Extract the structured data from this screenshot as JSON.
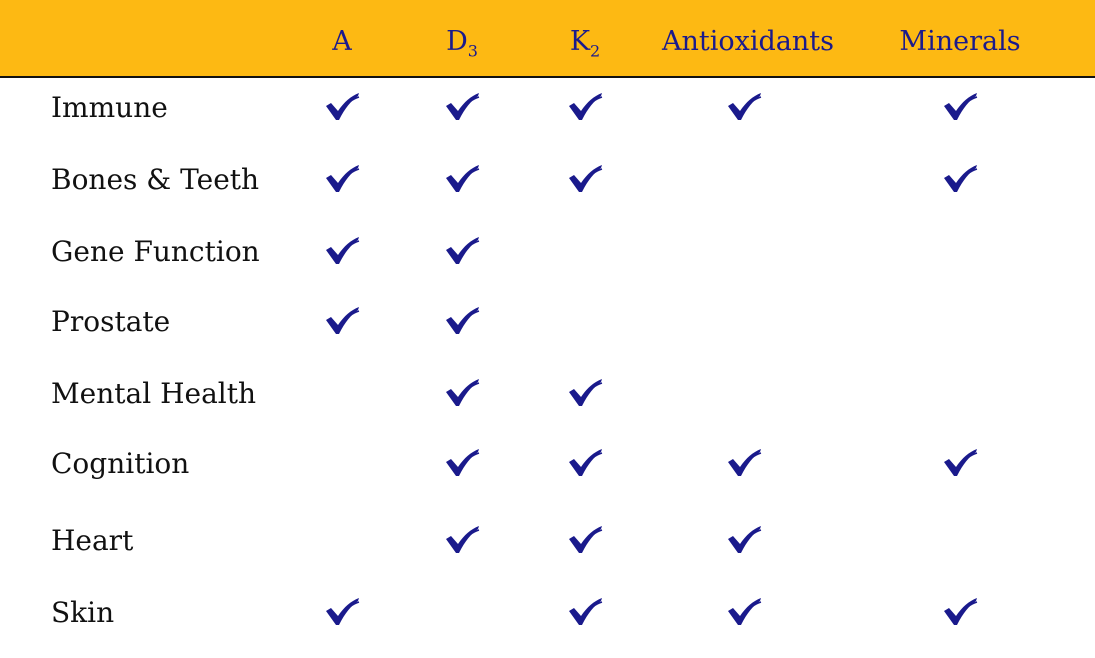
{
  "colors": {
    "header_bg": "#FDB913",
    "header_text": "#1a1a8c",
    "check": "#1a1a8c"
  },
  "columns": [
    {
      "label": "A",
      "sub": ""
    },
    {
      "label": "D",
      "sub": "3"
    },
    {
      "label": "K",
      "sub": "2"
    },
    {
      "label": "Antioxidants",
      "sub": ""
    },
    {
      "label": "Minerals",
      "sub": ""
    }
  ],
  "check_icon": "checkmark-icon",
  "rows": [
    {
      "label": "Immune",
      "checks": [
        true,
        true,
        true,
        true,
        true
      ]
    },
    {
      "label": "Bones & Teeth",
      "checks": [
        true,
        true,
        true,
        false,
        true
      ]
    },
    {
      "label": "Gene Function",
      "checks": [
        true,
        true,
        false,
        false,
        false
      ]
    },
    {
      "label": "Prostate",
      "checks": [
        true,
        true,
        false,
        false,
        false
      ]
    },
    {
      "label": "Mental Health",
      "checks": [
        false,
        true,
        true,
        false,
        false
      ]
    },
    {
      "label": "Cognition",
      "checks": [
        false,
        true,
        true,
        true,
        true
      ]
    },
    {
      "label": "Heart",
      "checks": [
        false,
        true,
        true,
        true,
        false
      ]
    },
    {
      "label": "Skin",
      "checks": [
        true,
        false,
        true,
        true,
        true
      ]
    }
  ]
}
